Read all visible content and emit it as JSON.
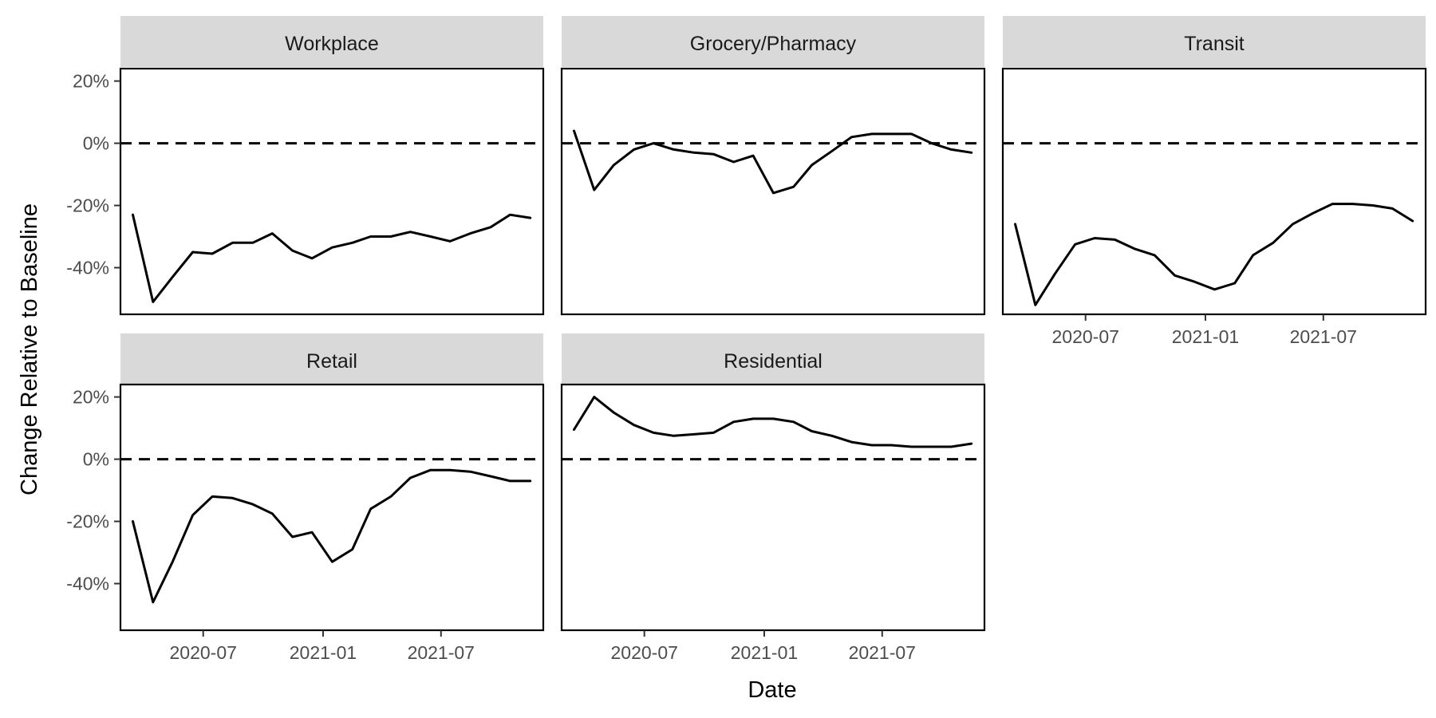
{
  "chart_data": {
    "type": "line",
    "facets": [
      "Workplace",
      "Grocery/Pharmacy",
      "Transit",
      "Retail",
      "Residential"
    ],
    "x": [
      "2020-03-15",
      "2020-04-15",
      "2020-05-15",
      "2020-06-15",
      "2020-07-15",
      "2020-08-15",
      "2020-09-15",
      "2020-10-15",
      "2020-11-15",
      "2020-12-15",
      "2021-01-15",
      "2021-02-15",
      "2021-03-15",
      "2021-04-15",
      "2021-05-15",
      "2021-06-15",
      "2021-07-15",
      "2021-08-15",
      "2021-09-15",
      "2021-10-15",
      "2021-11-15"
    ],
    "series": [
      {
        "name": "Workplace",
        "values": [
          -23,
          -51,
          -43,
          -35,
          -35.5,
          -32,
          -32,
          -29,
          -34.5,
          -37,
          -33.5,
          -32,
          -30,
          -30,
          -28.5,
          -30,
          -31.5,
          -29,
          -27,
          -23,
          -24
        ]
      },
      {
        "name": "Grocery/Pharmacy",
        "values": [
          4,
          -15,
          -7,
          -2,
          0,
          -2,
          -3,
          -3.5,
          -6,
          -4,
          -16,
          -14,
          -7,
          -2.5,
          2,
          3,
          3,
          3,
          0,
          -2,
          -3
        ]
      },
      {
        "name": "Transit",
        "values": [
          -26,
          -52,
          -42,
          -32.5,
          -30.5,
          -31,
          -34,
          -36,
          -42.5,
          -44.5,
          -47,
          -45,
          -36,
          -32,
          -26,
          -22.5,
          -19.5,
          -19.5,
          -20,
          -21,
          -25
        ]
      },
      {
        "name": "Retail",
        "values": [
          -20,
          -46,
          -33,
          -18,
          -12,
          -12.5,
          -14.5,
          -17.5,
          -25,
          -23.5,
          -33,
          -29,
          -16,
          -12,
          -6,
          -3.5,
          -3.5,
          -4,
          -5.5,
          -7,
          -7
        ]
      },
      {
        "name": "Residential",
        "values": [
          9.5,
          20,
          15,
          11,
          8.5,
          7.5,
          8,
          8.5,
          12,
          13,
          13,
          12,
          9,
          7.5,
          5.5,
          4.5,
          4.5,
          4,
          4,
          4,
          5
        ]
      }
    ],
    "xlabel": "Date",
    "ylabel": "Change Relative to Baseline",
    "x_ticks": [
      {
        "date": "2020-07-01",
        "label": "2020-07"
      },
      {
        "date": "2021-01-01",
        "label": "2021-01"
      },
      {
        "date": "2021-07-01",
        "label": "2021-07"
      }
    ],
    "y_ticks": [
      {
        "value": 20,
        "label": "20%"
      },
      {
        "value": 0,
        "label": "0%"
      },
      {
        "value": -20,
        "label": "-20%"
      },
      {
        "value": -40,
        "label": "-40%"
      }
    ],
    "xlim": [
      "2020-02-25",
      "2021-12-05"
    ],
    "ylim": [
      -55,
      24
    ],
    "reference_line": {
      "value": 0,
      "style": "dashed"
    },
    "grid": false,
    "legend": "none"
  }
}
